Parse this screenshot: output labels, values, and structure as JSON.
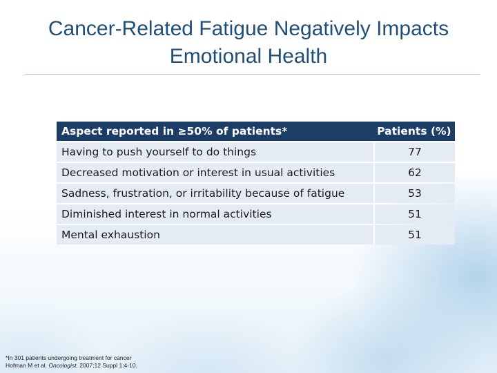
{
  "slide": {
    "title_line1": "Cancer-Related Fatigue Negatively Impacts",
    "title_line2": "Emotional Health"
  },
  "table": {
    "headers": [
      "Aspect reported in ≥50% of patients*",
      "Patients (%)"
    ],
    "rows": [
      {
        "aspect": "Having to push yourself to do things",
        "percent": "77"
      },
      {
        "aspect": "Decreased motivation or interest in usual activities",
        "percent": "62"
      },
      {
        "aspect": "Sadness, frustration, or irritability because of fatigue",
        "percent": "53"
      },
      {
        "aspect": "Diminished interest in normal activities",
        "percent": "51"
      },
      {
        "aspect": "Mental exhaustion",
        "percent": "51"
      }
    ]
  },
  "footnote": {
    "line1": "*In 301 patients undergoing treatment for cancer",
    "ref_authors": "Hofman M et al.",
    "ref_journal": "Oncologist.",
    "ref_details": "2007;12 Suppl 1:4-10."
  },
  "colors": {
    "title": "#1f4e79",
    "header_bg": "#1c3d66",
    "row_bg": "#e5ebf4"
  }
}
